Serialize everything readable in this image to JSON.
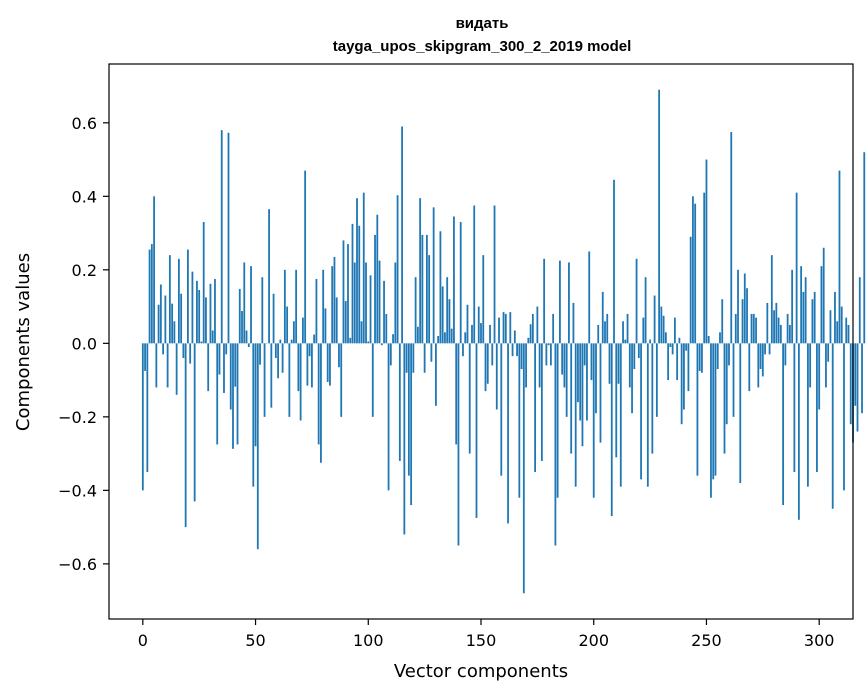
{
  "chart_data": {
    "type": "bar",
    "title": "видать",
    "subtitle": "tayga_upos_skipgram_300_2_2019 model",
    "xlabel": "Vector components",
    "ylabel": "Components values",
    "xlim": [
      -15,
      315
    ],
    "ylim": [
      -0.75,
      0.76
    ],
    "x_ticks": [
      0,
      50,
      100,
      150,
      200,
      250,
      300
    ],
    "y_ticks": [
      -0.6,
      -0.4,
      -0.2,
      0.0,
      0.2,
      0.4,
      0.6
    ],
    "y_tick_labels": [
      "−0.6",
      "−0.4",
      "−0.2",
      "0.0",
      "0.2",
      "0.4",
      "0.6"
    ],
    "bar_color": "#1f77b4",
    "grid": false,
    "values": [
      -0.4,
      -0.075,
      -0.35,
      0.255,
      0.27,
      0.4,
      -0.12,
      0.105,
      0.16,
      -0.03,
      0.13,
      -0.12,
      0.24,
      0.108,
      0.06,
      -0.14,
      0.23,
      0.135,
      -0.04,
      -0.5,
      0.255,
      -0.055,
      0.195,
      -0.43,
      0.17,
      0.145,
      0.005,
      0.33,
      0.125,
      -0.13,
      0.162,
      0.035,
      0.175,
      -0.275,
      -0.085,
      0.58,
      -0.135,
      -0.03,
      0.573,
      -0.18,
      -0.287,
      -0.118,
      -0.275,
      0.148,
      0.088,
      0.22,
      0.035,
      -0.01,
      0.21,
      -0.39,
      -0.28,
      -0.56,
      -0.058,
      0.18,
      -0.2,
      0.0,
      0.365,
      -0.175,
      0.135,
      -0.04,
      -0.095,
      0.01,
      -0.08,
      0.2,
      0.1,
      -0.2,
      0.01,
      0.06,
      0.2,
      -0.13,
      -0.21,
      0.07,
      0.47,
      -0.115,
      -0.035,
      -0.12,
      0.024,
      0.175,
      -0.275,
      -0.325,
      0.2,
      0.095,
      -0.105,
      -0.115,
      0.21,
      0.235,
      0.125,
      -0.065,
      -0.2,
      0.28,
      0.115,
      0.27,
      0.015,
      0.325,
      0.22,
      0.395,
      0.32,
      0.06,
      0.41,
      0.22,
      0.005,
      0.185,
      -0.2,
      0.295,
      0.35,
      0.225,
      -0.005,
      0.17,
      0.08,
      -0.4,
      -0.06,
      0.025,
      0.22,
      0.403,
      -0.32,
      0.59,
      -0.52,
      -0.08,
      -0.36,
      -0.44,
      -0.08,
      0.18,
      0.045,
      0.395,
      0.295,
      -0.08,
      0.295,
      0.24,
      -0.05,
      0.37,
      -0.17,
      0.02,
      0.305,
      0.155,
      0.03,
      0.18,
      0.12,
      0.04,
      0.345,
      -0.275,
      -0.55,
      0.33,
      -0.035,
      0.03,
      0.105,
      -0.3,
      0.05,
      0.375,
      -0.475,
      0.1,
      0.055,
      0.24,
      -0.13,
      -0.11,
      0.05,
      -0.06,
      0.375,
      -0.18,
      0.07,
      -0.36,
      0.085,
      0.08,
      -0.49,
      0.085,
      -0.035,
      0.035,
      -0.035,
      -0.42,
      -0.07,
      -0.68,
      -0.12,
      0.015,
      0.052,
      0.08,
      -0.35,
      0.1,
      -0.12,
      -0.32,
      0.23,
      -0.06,
      -0.005,
      -0.06,
      0.08,
      -0.55,
      -0.42,
      0.225,
      -0.085,
      -0.12,
      -0.2,
      0.22,
      -0.3,
      0.11,
      -0.39,
      -0.16,
      -0.21,
      -0.28,
      -0.06,
      -0.21,
      0.25,
      -0.1,
      -0.42,
      -0.19,
      0.05,
      -0.27,
      0.14,
      0.06,
      0.08,
      -0.11,
      -0.47,
      0.445,
      -0.31,
      -0.11,
      -0.39,
      0.06,
      0.01,
      0.08,
      -0.12,
      -0.19,
      -0.07,
      0.23,
      -0.04,
      -0.37,
      0.07,
      0.18,
      -0.39,
      0.01,
      -0.3,
      0.13,
      -0.2,
      0.69,
      0.1,
      0.075,
      0.03,
      -0.1,
      -0.01,
      -0.03,
      0.07,
      -0.1,
      0.015,
      -0.22,
      -0.18,
      -0.02,
      -0.13,
      0.29,
      0.4,
      0.38,
      -0.36,
      -0.075,
      -0.08,
      0.41,
      0.5,
      0.02,
      -0.42,
      -0.37,
      -0.36,
      -0.07,
      0.03,
      0.12,
      -0.3,
      -0.22,
      -0.06,
      0.575,
      -0.2,
      0.08,
      0.2,
      -0.38,
      0.12,
      0.19,
      0.15,
      -0.13,
      0.08,
      0.08,
      0.07,
      -0.12,
      -0.07,
      -0.09,
      -0.03,
      0.11,
      -0.03,
      0.24,
      0.09,
      0.11,
      0.07,
      0.05,
      -0.44,
      -0.06,
      0.08,
      0.05,
      0.2,
      -0.35,
      0.41,
      -0.48,
      0.21,
      0.14,
      0.18,
      -0.39,
      -0.12,
      0.12,
      0.14,
      -0.35,
      -0.18,
      0.21,
      0.26,
      -0.12,
      -0.05,
      0.09,
      -0.45,
      0.14,
      0.06,
      0.47,
      0.1,
      -0.4,
      0.07,
      0.05,
      -0.22,
      -0.27,
      -0.17,
      -0.24,
      0.18,
      -0.19,
      0.52
    ]
  }
}
